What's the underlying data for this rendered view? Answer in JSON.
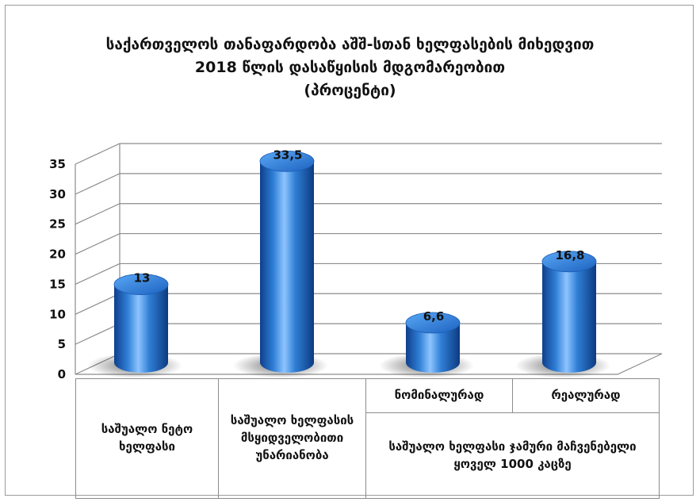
{
  "chart_data": {
    "type": "bar",
    "title": [
      "საქართველოს თანაფარდობა აშშ-სთან ხელფასების მიხედვით",
      "2018 წლის დასაწყისის მდგომარეობით",
      "(პროცენტი)"
    ],
    "categories": [
      "საშუალო ნეტო ხელფასი",
      "საშუალო ხელფასის მსყიდველობითი უნარიანობა",
      "ნომინალურად",
      "რეალურად"
    ],
    "group_label": "საშუალო ხელფასი ჯამური მაჩვენებელი  ყოველ 1000 კაცზე",
    "values": [
      13,
      33.5,
      6.6,
      16.8
    ],
    "data_labels": [
      "13",
      "33,5",
      "6,6",
      "16,8"
    ],
    "y_ticks": [
      "0",
      "5",
      "10",
      "15",
      "20",
      "25",
      "30",
      "35"
    ],
    "ylim": [
      0,
      35
    ],
    "grid": true,
    "legend": "none",
    "colors": {
      "bar": "#2f7fd6",
      "bar_dark": "#0f3f8c",
      "bar_light": "#8ec4ff",
      "grid": "#8c8c8c"
    }
  }
}
